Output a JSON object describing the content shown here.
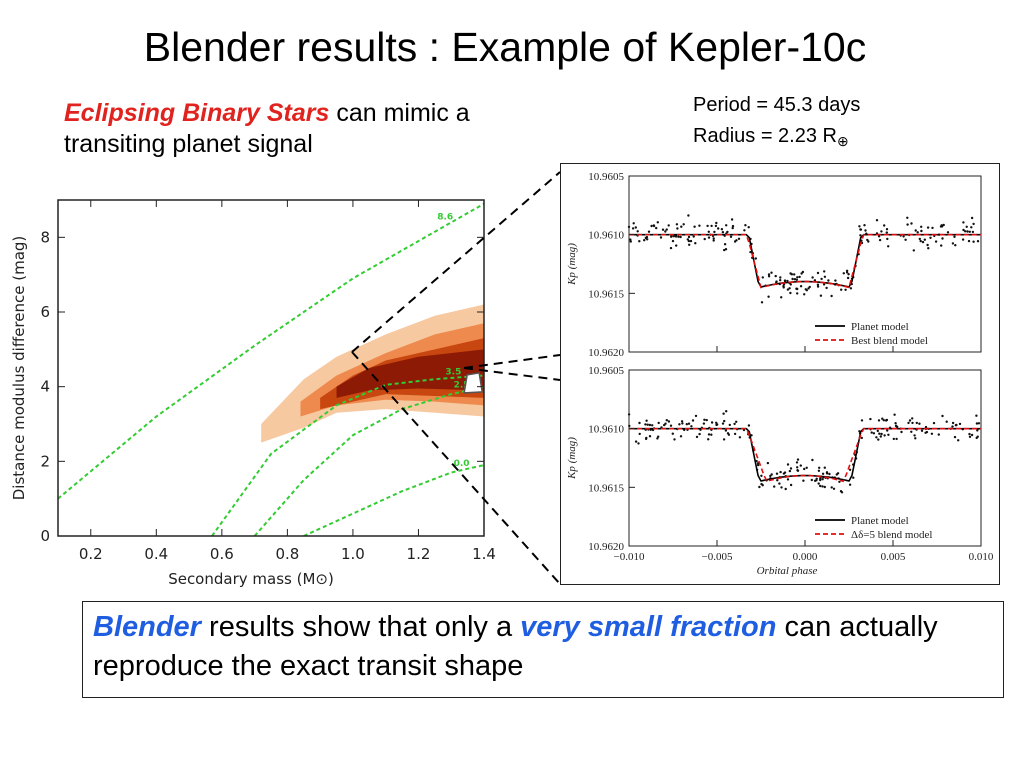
{
  "title": "Blender results : Example of Kepler-10c",
  "intro": {
    "highlight": "Eclipsing Binary Stars",
    "text_rest": " can mimic a transiting planet signal"
  },
  "params": {
    "period": "Period = 45.3 days",
    "radius": "Radius = 2.23 R",
    "radius_symbol": "⊕"
  },
  "summary": {
    "highlight1": "Blender",
    "text1": " results show that only a ",
    "highlight2": "very small fraction",
    "text2": " can actually reproduce the exact transit shape"
  },
  "colors": {
    "highlight_red": "#e0231e",
    "highlight_blue": "#1f5ee0",
    "contour_light": "#f7c9a0",
    "contour_mid": "#ee8a4e",
    "contour_dark": "#c8460f",
    "contour_core": "#8c1a05",
    "isochrone": "#33cc33",
    "model_red": "#e01010"
  },
  "chart_data": [
    {
      "type": "heatmap",
      "title": "",
      "xlabel": "Secondary mass (M⊙)",
      "ylabel": "Distance modulus difference (mag)",
      "xlim": [
        0.1,
        1.4
      ],
      "ylim": [
        0,
        9
      ],
      "xticks": [
        "0.2",
        "0.4",
        "0.6",
        "0.8",
        "1.0",
        "1.2",
        "1.4"
      ],
      "yticks": [
        "0",
        "2",
        "4",
        "6",
        "8"
      ],
      "grid": false,
      "region_levels": [
        {
          "level": "outer",
          "upper": [
            [
              0.72,
              3.0
            ],
            [
              0.85,
              4.2
            ],
            [
              0.95,
              4.8
            ],
            [
              1.1,
              5.4
            ],
            [
              1.25,
              5.9
            ],
            [
              1.4,
              6.2
            ]
          ],
          "lower": [
            [
              0.72,
              2.5
            ],
            [
              0.85,
              2.9
            ],
            [
              0.95,
              3.3
            ],
            [
              1.1,
              3.4
            ],
            [
              1.25,
              3.3
            ],
            [
              1.4,
              3.2
            ]
          ]
        },
        {
          "level": "mid",
          "upper": [
            [
              0.84,
              3.6
            ],
            [
              0.95,
              4.3
            ],
            [
              1.1,
              4.9
            ],
            [
              1.25,
              5.4
            ],
            [
              1.4,
              5.7
            ]
          ],
          "lower": [
            [
              0.84,
              3.2
            ],
            [
              0.95,
              3.5
            ],
            [
              1.1,
              3.65
            ],
            [
              1.25,
              3.6
            ],
            [
              1.4,
              3.5
            ]
          ]
        },
        {
          "level": "dark",
          "upper": [
            [
              0.9,
              3.7
            ],
            [
              1.0,
              4.3
            ],
            [
              1.1,
              4.7
            ],
            [
              1.25,
              5.0
            ],
            [
              1.4,
              5.3
            ]
          ],
          "lower": [
            [
              0.9,
              3.4
            ],
            [
              1.0,
              3.6
            ],
            [
              1.1,
              3.8
            ],
            [
              1.25,
              3.75
            ],
            [
              1.4,
              3.7
            ]
          ]
        },
        {
          "level": "core",
          "upper": [
            [
              0.95,
              4.0
            ],
            [
              1.05,
              4.5
            ],
            [
              1.2,
              4.8
            ],
            [
              1.4,
              5.0
            ]
          ],
          "lower": [
            [
              0.95,
              3.7
            ],
            [
              1.05,
              3.9
            ],
            [
              1.2,
              3.95
            ],
            [
              1.4,
              3.9
            ]
          ]
        }
      ],
      "series": [
        {
          "name": "8.6",
          "x": [
            0.1,
            0.4,
            0.7,
            1.0,
            1.2,
            1.4
          ],
          "y": [
            1.0,
            3.2,
            5.1,
            6.9,
            7.9,
            8.9
          ]
        },
        {
          "name": "3.5",
          "x": [
            0.57,
            0.75,
            0.95,
            1.1,
            1.25,
            1.4
          ],
          "y": [
            0.0,
            2.2,
            3.5,
            4.05,
            4.2,
            4.3
          ]
        },
        {
          "name": "2.5",
          "x": [
            0.7,
            0.85,
            1.0,
            1.15,
            1.3,
            1.4
          ],
          "y": [
            0.0,
            1.5,
            2.7,
            3.4,
            3.8,
            4.0
          ]
        },
        {
          "name": "0.0",
          "x": [
            0.85,
            1.0,
            1.15,
            1.3,
            1.4
          ],
          "y": [
            0.0,
            0.6,
            1.2,
            1.7,
            1.9
          ]
        }
      ],
      "marker": {
        "x": 1.37,
        "y": 4.1
      }
    },
    {
      "type": "scatter",
      "title": "",
      "xlabel": "Orbital phase",
      "ylabel": "Kp (mag)",
      "xlim": [
        -0.01,
        0.01
      ],
      "ylim": [
        10.962,
        10.9605
      ],
      "xticks": [
        "−0.010",
        "−0.005",
        "0.000",
        "0.005",
        "0.010"
      ],
      "yticks": [
        "10.9605",
        "10.9610",
        "10.9615",
        "10.9620"
      ],
      "legend_placement": "bottom-right",
      "transit": {
        "ingress_start": -0.0033,
        "ingress_end": -0.0025,
        "egress_start": 0.0025,
        "egress_end": 0.0033,
        "baseline": 10.961,
        "depth": 10.96145
      },
      "series": [
        {
          "name": "Planet model",
          "style": "solid",
          "color": "#000000"
        },
        {
          "name": "Best blend model",
          "style": "dashed",
          "color": "#e01010"
        }
      ]
    },
    {
      "type": "scatter",
      "title": "",
      "xlabel": "Orbital phase",
      "ylabel": "Kp (mag)",
      "xlim": [
        -0.01,
        0.01
      ],
      "ylim": [
        10.962,
        10.9605
      ],
      "xticks": [
        "−0.010",
        "−0.005",
        "0.000",
        "0.005",
        "0.010"
      ],
      "yticks": [
        "10.9605",
        "10.9610",
        "10.9615",
        "10.9620"
      ],
      "legend_placement": "bottom-right",
      "transit": {
        "ingress_start": -0.0033,
        "ingress_end": -0.0022,
        "egress_start": 0.0022,
        "egress_end": 0.0033,
        "baseline": 10.961,
        "depth": 10.96145
      },
      "series": [
        {
          "name": "Planet model",
          "style": "solid",
          "color": "#000000"
        },
        {
          "name": "Δδ=5 blend model",
          "style": "dashed",
          "color": "#e01010"
        }
      ]
    }
  ]
}
